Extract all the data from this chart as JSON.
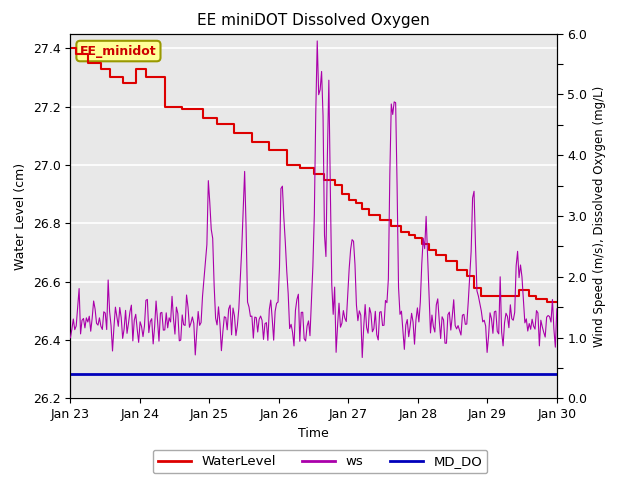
{
  "title": "EE miniDOT Dissolved Oxygen",
  "xlabel": "Time",
  "ylabel_left": "Water Level (cm)",
  "ylabel_right": "Wind Speed (m/s), Dissolved Oxygen (mg/L)",
  "annotation": "EE_minidot",
  "ylim_left": [
    26.2,
    27.45
  ],
  "ylim_right": [
    0.0,
    6.0
  ],
  "yticks_left": [
    26.2,
    26.4,
    26.6,
    26.8,
    27.0,
    27.2,
    27.4
  ],
  "yticks_right": [
    0.0,
    0.5,
    1.0,
    1.5,
    2.0,
    2.5,
    3.0,
    3.5,
    4.0,
    4.5,
    5.0,
    5.5,
    6.0
  ],
  "yticks_right_labeled": [
    0.0,
    1.0,
    2.0,
    3.0,
    4.0,
    5.0,
    6.0
  ],
  "xtick_labels": [
    "Jan 23",
    "Jan 24",
    "Jan 25",
    "Jan 26",
    "Jan 27",
    "Jan 28",
    "Jan 29",
    "Jan 30"
  ],
  "legend_labels": [
    "WaterLevel",
    "ws",
    "MD_DO"
  ],
  "legend_colors": [
    "#dd0000",
    "#aa00aa",
    "#0000bb"
  ],
  "bg_color": "#e8e8e8",
  "grid_color": "#ffffff",
  "annotation_bg": "#ffff99",
  "annotation_border": "#999900",
  "annotation_text_color": "#cc0000",
  "wl_steps_t": [
    0.0,
    0.08,
    0.25,
    0.42,
    0.55,
    0.75,
    0.92,
    1.08,
    1.35,
    1.6,
    1.9,
    2.1,
    2.35,
    2.6,
    2.85,
    3.1,
    3.3,
    3.5,
    3.65,
    3.8,
    3.9,
    4.0,
    4.1,
    4.2,
    4.3,
    4.45,
    4.6,
    4.75,
    4.85,
    4.95,
    5.05,
    5.15,
    5.25,
    5.4,
    5.55,
    5.7,
    5.8,
    5.9,
    6.0,
    6.15,
    6.3,
    6.45,
    6.6,
    6.7,
    6.85,
    7.0
  ],
  "wl_steps_v": [
    27.4,
    27.38,
    27.35,
    27.33,
    27.3,
    27.28,
    27.33,
    27.3,
    27.2,
    27.19,
    27.16,
    27.14,
    27.11,
    27.08,
    27.05,
    27.0,
    26.99,
    26.97,
    26.95,
    26.93,
    26.9,
    26.88,
    26.87,
    26.85,
    26.83,
    26.81,
    26.79,
    26.77,
    26.76,
    26.75,
    26.73,
    26.71,
    26.69,
    26.67,
    26.64,
    26.62,
    26.58,
    26.55,
    26.55,
    26.55,
    26.55,
    26.57,
    26.55,
    26.54,
    26.53,
    26.52
  ],
  "md_do_value": 0.4
}
